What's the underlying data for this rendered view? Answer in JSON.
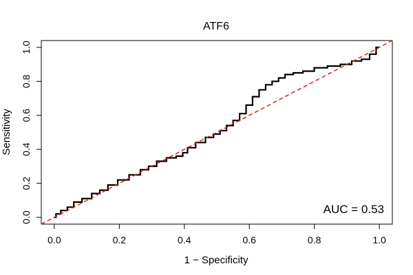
{
  "chart_data": {
    "type": "line",
    "title": "ATF6",
    "xlabel": "1 − Specificity",
    "ylabel": "Sensitivity",
    "xlim": [
      -0.04,
      1.04
    ],
    "ylim": [
      -0.04,
      1.04
    ],
    "x_ticks": [
      0.0,
      0.2,
      0.4,
      0.6,
      0.8,
      1.0
    ],
    "x_tick_labels": [
      "0.0",
      "0.2",
      "0.4",
      "0.6",
      "0.8",
      "1.0"
    ],
    "y_ticks": [
      0.0,
      0.2,
      0.4,
      0.6,
      0.8,
      1.0
    ],
    "y_tick_labels": [
      "0.0",
      "0.2",
      "0.4",
      "0.6",
      "0.8",
      "1.0"
    ],
    "grid": false,
    "annotation": "AUC = 0.53",
    "series": [
      {
        "color": "#000000",
        "style": "solid",
        "x": [
          0.0,
          0.01,
          0.03,
          0.05,
          0.07,
          0.1,
          0.13,
          0.15,
          0.18,
          0.21,
          0.25,
          0.28,
          0.3,
          0.33,
          0.36,
          0.39,
          0.4,
          0.42,
          0.45,
          0.48,
          0.5,
          0.52,
          0.54,
          0.56,
          0.58,
          0.6,
          0.62,
          0.64,
          0.66,
          0.68,
          0.7,
          0.72,
          0.75,
          0.78,
          0.82,
          0.86,
          0.9,
          0.93,
          0.96,
          0.98,
          1.0
        ],
        "y": [
          0.0,
          0.02,
          0.04,
          0.06,
          0.09,
          0.11,
          0.14,
          0.16,
          0.19,
          0.22,
          0.25,
          0.28,
          0.3,
          0.33,
          0.35,
          0.36,
          0.38,
          0.41,
          0.44,
          0.47,
          0.49,
          0.51,
          0.54,
          0.57,
          0.61,
          0.66,
          0.71,
          0.75,
          0.78,
          0.8,
          0.82,
          0.84,
          0.85,
          0.86,
          0.88,
          0.89,
          0.9,
          0.92,
          0.93,
          0.96,
          1.0
        ]
      },
      {
        "color": "#e41a1c",
        "style": "dashed",
        "x": [
          -0.04,
          1.04
        ],
        "y": [
          -0.04,
          1.04
        ]
      }
    ]
  }
}
